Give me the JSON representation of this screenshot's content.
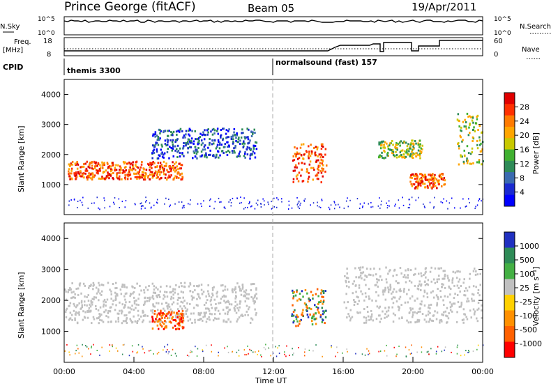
{
  "header": {
    "title": "Prince George (fitACF)",
    "beam": "Beam 05",
    "date": "19/Apr/2011"
  },
  "top_panels": {
    "nsky_label": "N.Sky",
    "nsky_ticks": [
      "10^5",
      "10^0"
    ],
    "nsearch_label": "N.Search",
    "nsearch_ticks": [
      "10^5",
      "10^0"
    ],
    "freq_label_line1": "Freq.",
    "freq_label_line2": "[MHz]",
    "freq_ticks": [
      "18",
      "8"
    ],
    "nave_label": "Nave",
    "nave_ticks": [
      "60",
      "0"
    ],
    "cpid_label": "CPID",
    "cpid_entries": [
      "themis 3300",
      "normalsound (fast) 157"
    ]
  },
  "power_panel": {
    "ylabel": "Slant Range [km]",
    "colorbar_label": "Power [dB]",
    "colorbar_ticks": [
      "28",
      "24",
      "20",
      "16",
      "12",
      "8",
      "4"
    ],
    "colorbar_colors": [
      "#e00000",
      "#ff3000",
      "#ff7a00",
      "#ffa500",
      "#c8c800",
      "#40b030",
      "#2e8b57",
      "#3a6ab0",
      "#1a2ad0",
      "#0000ff"
    ]
  },
  "velocity_panel": {
    "ylabel": "Slant Range [km]",
    "colorbar_label": "Velocity [m s⁻¹]",
    "colorbar_ticks": [
      "1000",
      "500",
      "100",
      "25",
      "-25",
      "-100",
      "-500",
      "-1000"
    ],
    "colorbar_colors": [
      "#2030c0",
      "#2e8b57",
      "#44b044",
      "#c0c0c0",
      "#ffd000",
      "#ff9000",
      "#ff6000",
      "#ff0000"
    ]
  },
  "x_axis": {
    "label": "Time UT",
    "ticks": [
      "00:00",
      "04:00",
      "08:00",
      "12:00",
      "16:00",
      "20:00",
      "00:00"
    ]
  },
  "chart_data": {
    "type": "heatmap",
    "title": "Prince George (fitACF)",
    "xlabel": "Time UT",
    "ylabel": "Slant Range [km]",
    "ylim": [
      0,
      4500
    ],
    "xlim": [
      "00:00",
      "24:00"
    ],
    "yticks": [
      1000,
      2000,
      3000,
      4000
    ],
    "power_range_db": [
      0,
      32
    ],
    "velocity_range": [
      -1200,
      1200
    ],
    "power_regions": [
      {
        "t0": 0.2,
        "t1": 6.8,
        "r0": 1200,
        "r1": 1800,
        "level": "high"
      },
      {
        "t0": 5.0,
        "t1": 11.0,
        "r0": 1900,
        "r1": 2900,
        "level": "low"
      },
      {
        "t0": 13.0,
        "t1": 15.0,
        "r0": 1100,
        "r1": 2400,
        "level": "high"
      },
      {
        "t0": 18.0,
        "t1": 20.5,
        "r0": 1900,
        "r1": 2500,
        "level": "mid"
      },
      {
        "t0": 19.8,
        "t1": 21.8,
        "r0": 900,
        "r1": 1400,
        "level": "high"
      },
      {
        "t0": 22.5,
        "t1": 24.0,
        "r0": 1700,
        "r1": 3400,
        "level": "mid"
      }
    ],
    "velocity_regions": [
      {
        "t0": 0.0,
        "t1": 11.0,
        "r0": 1300,
        "r1": 2600,
        "level": "ground"
      },
      {
        "t0": 5.0,
        "t1": 6.8,
        "r0": 1100,
        "r1": 1700,
        "level": "negative"
      },
      {
        "t0": 13.0,
        "t1": 15.0,
        "r0": 1200,
        "r1": 2400,
        "level": "mixed"
      },
      {
        "t0": 16.0,
        "t1": 23.9,
        "r0": 1300,
        "r1": 3100,
        "level": "ground"
      }
    ]
  }
}
